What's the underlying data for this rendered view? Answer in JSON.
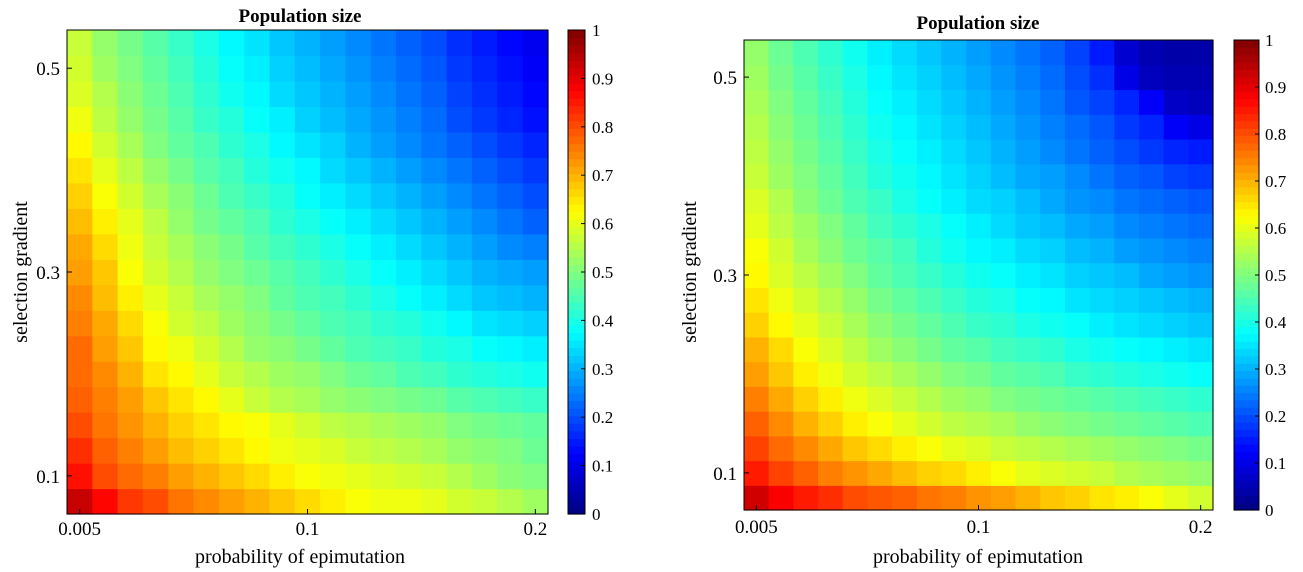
{
  "chart_data": [
    {
      "type": "heatmap",
      "title": "Population size",
      "xlabel": "probability of epimutation",
      "ylabel": "selection gradient",
      "x_ticks": [
        "0.005",
        "0.1",
        "0.2"
      ],
      "y_ticks": [
        "0.1",
        "0.3",
        "0.5"
      ],
      "colorbar_ticks": [
        "0",
        "0.1",
        "0.2",
        "0.3",
        "0.4",
        "0.5",
        "0.6",
        "0.7",
        "0.8",
        "0.9",
        "1"
      ],
      "colormap": "jet",
      "clim": [
        0,
        1
      ],
      "grid_size": [
        19,
        19
      ],
      "values_note": "rows from bottom (lowest selection gradient) to top; columns from low to high probability of epimutation",
      "values": [
        [
          0.93,
          0.87,
          0.82,
          0.8,
          0.76,
          0.74,
          0.72,
          0.7,
          0.68,
          0.66,
          0.64,
          0.62,
          0.61,
          0.61,
          0.6,
          0.58,
          0.57,
          0.55,
          0.53
        ],
        [
          0.86,
          0.8,
          0.77,
          0.75,
          0.72,
          0.7,
          0.68,
          0.66,
          0.64,
          0.62,
          0.61,
          0.6,
          0.59,
          0.58,
          0.57,
          0.55,
          0.53,
          0.51,
          0.5
        ],
        [
          0.83,
          0.78,
          0.75,
          0.72,
          0.69,
          0.67,
          0.65,
          0.63,
          0.61,
          0.6,
          0.59,
          0.57,
          0.56,
          0.55,
          0.54,
          0.52,
          0.51,
          0.5,
          0.48
        ],
        [
          0.8,
          0.76,
          0.73,
          0.7,
          0.67,
          0.65,
          0.63,
          0.62,
          0.6,
          0.58,
          0.56,
          0.55,
          0.54,
          0.53,
          0.52,
          0.5,
          0.49,
          0.48,
          0.47
        ],
        [
          0.78,
          0.75,
          0.72,
          0.68,
          0.65,
          0.63,
          0.6,
          0.57,
          0.55,
          0.54,
          0.52,
          0.51,
          0.5,
          0.49,
          0.48,
          0.46,
          0.45,
          0.44,
          0.43
        ],
        [
          0.77,
          0.74,
          0.7,
          0.65,
          0.63,
          0.6,
          0.57,
          0.55,
          0.53,
          0.52,
          0.5,
          0.48,
          0.47,
          0.45,
          0.44,
          0.42,
          0.41,
          0.4,
          0.39
        ],
        [
          0.77,
          0.72,
          0.68,
          0.63,
          0.61,
          0.58,
          0.55,
          0.52,
          0.51,
          0.49,
          0.47,
          0.45,
          0.44,
          0.43,
          0.41,
          0.4,
          0.38,
          0.37,
          0.36
        ],
        [
          0.75,
          0.71,
          0.66,
          0.62,
          0.58,
          0.56,
          0.53,
          0.51,
          0.49,
          0.47,
          0.45,
          0.44,
          0.42,
          0.41,
          0.39,
          0.37,
          0.35,
          0.34,
          0.33
        ],
        [
          0.74,
          0.69,
          0.64,
          0.6,
          0.57,
          0.54,
          0.52,
          0.5,
          0.47,
          0.45,
          0.44,
          0.42,
          0.4,
          0.38,
          0.36,
          0.34,
          0.32,
          0.31,
          0.3
        ],
        [
          0.72,
          0.68,
          0.62,
          0.58,
          0.55,
          0.52,
          0.5,
          0.48,
          0.46,
          0.44,
          0.42,
          0.4,
          0.38,
          0.36,
          0.34,
          0.32,
          0.3,
          0.29,
          0.28
        ],
        [
          0.71,
          0.66,
          0.61,
          0.57,
          0.54,
          0.51,
          0.49,
          0.46,
          0.44,
          0.42,
          0.4,
          0.38,
          0.36,
          0.34,
          0.32,
          0.3,
          0.28,
          0.26,
          0.25
        ],
        [
          0.69,
          0.64,
          0.6,
          0.56,
          0.52,
          0.49,
          0.47,
          0.45,
          0.42,
          0.4,
          0.38,
          0.36,
          0.34,
          0.32,
          0.3,
          0.28,
          0.26,
          0.24,
          0.22
        ],
        [
          0.67,
          0.62,
          0.58,
          0.54,
          0.51,
          0.48,
          0.45,
          0.43,
          0.41,
          0.38,
          0.36,
          0.34,
          0.32,
          0.3,
          0.28,
          0.26,
          0.24,
          0.22,
          0.2
        ],
        [
          0.65,
          0.6,
          0.56,
          0.52,
          0.49,
          0.46,
          0.44,
          0.41,
          0.39,
          0.37,
          0.34,
          0.32,
          0.3,
          0.28,
          0.26,
          0.24,
          0.22,
          0.2,
          0.18
        ],
        [
          0.63,
          0.58,
          0.54,
          0.5,
          0.47,
          0.45,
          0.42,
          0.4,
          0.37,
          0.35,
          0.33,
          0.3,
          0.28,
          0.26,
          0.24,
          0.22,
          0.2,
          0.18,
          0.16
        ],
        [
          0.61,
          0.56,
          0.52,
          0.49,
          0.46,
          0.43,
          0.41,
          0.38,
          0.36,
          0.33,
          0.31,
          0.29,
          0.27,
          0.25,
          0.23,
          0.2,
          0.18,
          0.16,
          0.14
        ],
        [
          0.59,
          0.55,
          0.51,
          0.48,
          0.45,
          0.42,
          0.39,
          0.37,
          0.34,
          0.32,
          0.3,
          0.28,
          0.26,
          0.24,
          0.22,
          0.19,
          0.17,
          0.15,
          0.13
        ],
        [
          0.58,
          0.53,
          0.5,
          0.47,
          0.44,
          0.41,
          0.38,
          0.36,
          0.33,
          0.31,
          0.29,
          0.27,
          0.25,
          0.23,
          0.21,
          0.18,
          0.16,
          0.14,
          0.12
        ],
        [
          0.57,
          0.52,
          0.49,
          0.46,
          0.43,
          0.4,
          0.37,
          0.35,
          0.32,
          0.3,
          0.28,
          0.26,
          0.24,
          0.22,
          0.2,
          0.17,
          0.15,
          0.13,
          0.11
        ]
      ]
    },
    {
      "type": "heatmap",
      "title": "Population size",
      "xlabel": "probability of epimutation",
      "ylabel": "selection gradient",
      "x_ticks": [
        "0.005",
        "0.1",
        "0.2"
      ],
      "y_ticks": [
        "0.1",
        "0.3",
        "0.5"
      ],
      "colorbar_ticks": [
        "0",
        "0.1",
        "0.2",
        "0.3",
        "0.4",
        "0.5",
        "0.6",
        "0.7",
        "0.8",
        "0.9",
        "1"
      ],
      "colormap": "jet",
      "clim": [
        0,
        1
      ],
      "grid_size": [
        19,
        19
      ],
      "values_note": "rows from bottom (lowest selection gradient) to top; columns from low to high probability of epimutation",
      "values": [
        [
          0.92,
          0.88,
          0.85,
          0.83,
          0.8,
          0.79,
          0.78,
          0.76,
          0.75,
          0.73,
          0.72,
          0.7,
          0.68,
          0.67,
          0.65,
          0.64,
          0.62,
          0.6,
          0.58
        ],
        [
          0.85,
          0.81,
          0.78,
          0.75,
          0.73,
          0.71,
          0.69,
          0.67,
          0.66,
          0.64,
          0.62,
          0.6,
          0.59,
          0.58,
          0.57,
          0.55,
          0.54,
          0.53,
          0.52
        ],
        [
          0.81,
          0.77,
          0.74,
          0.71,
          0.68,
          0.66,
          0.64,
          0.62,
          0.6,
          0.59,
          0.57,
          0.56,
          0.55,
          0.54,
          0.53,
          0.52,
          0.51,
          0.5,
          0.49
        ],
        [
          0.78,
          0.74,
          0.7,
          0.67,
          0.64,
          0.62,
          0.6,
          0.58,
          0.56,
          0.55,
          0.54,
          0.52,
          0.51,
          0.5,
          0.49,
          0.48,
          0.47,
          0.46,
          0.45
        ],
        [
          0.75,
          0.71,
          0.67,
          0.64,
          0.61,
          0.59,
          0.57,
          0.55,
          0.53,
          0.52,
          0.5,
          0.49,
          0.48,
          0.47,
          0.46,
          0.45,
          0.44,
          0.43,
          0.42
        ],
        [
          0.72,
          0.68,
          0.64,
          0.61,
          0.58,
          0.56,
          0.54,
          0.52,
          0.5,
          0.49,
          0.47,
          0.46,
          0.45,
          0.43,
          0.42,
          0.41,
          0.4,
          0.39,
          0.38
        ],
        [
          0.7,
          0.66,
          0.62,
          0.59,
          0.56,
          0.53,
          0.51,
          0.49,
          0.47,
          0.46,
          0.44,
          0.43,
          0.42,
          0.4,
          0.39,
          0.38,
          0.37,
          0.36,
          0.35
        ],
        [
          0.67,
          0.63,
          0.6,
          0.57,
          0.54,
          0.51,
          0.49,
          0.47,
          0.45,
          0.43,
          0.42,
          0.4,
          0.39,
          0.38,
          0.36,
          0.35,
          0.34,
          0.33,
          0.32
        ],
        [
          0.65,
          0.61,
          0.58,
          0.55,
          0.52,
          0.49,
          0.47,
          0.45,
          0.43,
          0.41,
          0.4,
          0.38,
          0.37,
          0.35,
          0.34,
          0.33,
          0.32,
          0.31,
          0.3
        ],
        [
          0.63,
          0.59,
          0.56,
          0.53,
          0.5,
          0.47,
          0.45,
          0.43,
          0.41,
          0.39,
          0.38,
          0.36,
          0.35,
          0.33,
          0.32,
          0.31,
          0.29,
          0.28,
          0.27
        ],
        [
          0.62,
          0.58,
          0.54,
          0.51,
          0.48,
          0.46,
          0.44,
          0.41,
          0.39,
          0.37,
          0.36,
          0.34,
          0.33,
          0.31,
          0.3,
          0.28,
          0.27,
          0.26,
          0.25
        ],
        [
          0.6,
          0.56,
          0.53,
          0.5,
          0.47,
          0.44,
          0.42,
          0.4,
          0.38,
          0.36,
          0.34,
          0.32,
          0.31,
          0.29,
          0.28,
          0.26,
          0.25,
          0.24,
          0.23
        ],
        [
          0.59,
          0.55,
          0.51,
          0.48,
          0.45,
          0.43,
          0.4,
          0.38,
          0.36,
          0.34,
          0.33,
          0.31,
          0.29,
          0.27,
          0.26,
          0.24,
          0.23,
          0.22,
          0.21
        ],
        [
          0.57,
          0.53,
          0.5,
          0.47,
          0.44,
          0.41,
          0.39,
          0.37,
          0.35,
          0.33,
          0.31,
          0.29,
          0.28,
          0.26,
          0.24,
          0.22,
          0.21,
          0.19,
          0.18
        ],
        [
          0.56,
          0.52,
          0.49,
          0.46,
          0.43,
          0.4,
          0.38,
          0.36,
          0.34,
          0.32,
          0.3,
          0.28,
          0.26,
          0.24,
          0.22,
          0.2,
          0.18,
          0.16,
          0.15
        ],
        [
          0.55,
          0.51,
          0.48,
          0.45,
          0.42,
          0.39,
          0.37,
          0.35,
          0.33,
          0.31,
          0.29,
          0.27,
          0.25,
          0.23,
          0.21,
          0.18,
          0.16,
          0.12,
          0.1
        ],
        [
          0.54,
          0.5,
          0.47,
          0.44,
          0.41,
          0.38,
          0.36,
          0.34,
          0.32,
          0.3,
          0.28,
          0.26,
          0.24,
          0.21,
          0.19,
          0.16,
          0.12,
          0.07,
          0.06
        ],
        [
          0.53,
          0.49,
          0.46,
          0.43,
          0.4,
          0.37,
          0.35,
          0.33,
          0.31,
          0.29,
          0.27,
          0.25,
          0.23,
          0.2,
          0.17,
          0.1,
          0.06,
          0.05,
          0.05
        ],
        [
          0.52,
          0.48,
          0.45,
          0.42,
          0.39,
          0.36,
          0.34,
          0.32,
          0.3,
          0.28,
          0.26,
          0.24,
          0.22,
          0.19,
          0.15,
          0.08,
          0.05,
          0.04,
          0.04
        ]
      ]
    }
  ]
}
